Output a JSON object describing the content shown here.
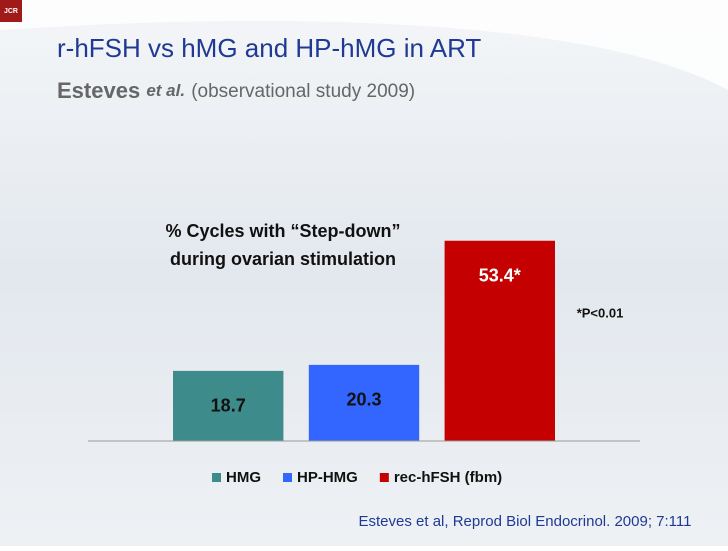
{
  "logo": "JCR",
  "header": {
    "title": "r-hFSH vs hMG and HP-hMG in ART",
    "subtitle": {
      "author": "Esteves",
      "etal": "et al.",
      "rest": "(observational study 2009)"
    }
  },
  "chart_data": {
    "type": "bar",
    "title": [
      "% Cycles with “Step-down”",
      "during ovarian stimulation"
    ],
    "categories": [
      null
    ],
    "series": [
      {
        "name": "HMG",
        "color": "#3d8b8b",
        "values": [
          18.7
        ]
      },
      {
        "name": "HP-HMG",
        "color": "#3366ff",
        "values": [
          20.3
        ]
      },
      {
        "name": "rec-hFSH (fbm)",
        "color": "#c40000",
        "values": [
          53.4
        ],
        "value_labels": [
          "53.4*"
        ]
      }
    ],
    "ylim": [
      0,
      60
    ],
    "annotation": "*P<0.01",
    "legend": "bottom"
  },
  "footer": "Esteves et al, Reprod Biol Endocrinol. 2009; 7:111"
}
